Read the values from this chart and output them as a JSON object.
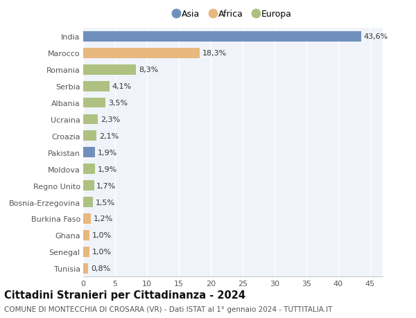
{
  "countries": [
    "India",
    "Marocco",
    "Romania",
    "Serbia",
    "Albania",
    "Ucraina",
    "Croazia",
    "Pakistan",
    "Moldova",
    "Regno Unito",
    "Bosnia-Erzegovina",
    "Burkina Faso",
    "Ghana",
    "Senegal",
    "Tunisia"
  ],
  "values": [
    43.6,
    18.3,
    8.3,
    4.1,
    3.5,
    2.3,
    2.1,
    1.9,
    1.9,
    1.7,
    1.5,
    1.2,
    1.0,
    1.0,
    0.8
  ],
  "labels": [
    "43,6%",
    "18,3%",
    "8,3%",
    "4,1%",
    "3,5%",
    "2,3%",
    "2,1%",
    "1,9%",
    "1,9%",
    "1,7%",
    "1,5%",
    "1,2%",
    "1,0%",
    "1,0%",
    "0,8%"
  ],
  "continents": [
    "Asia",
    "Africa",
    "Europa",
    "Europa",
    "Europa",
    "Europa",
    "Europa",
    "Asia",
    "Europa",
    "Europa",
    "Europa",
    "Africa",
    "Africa",
    "Africa",
    "Africa"
  ],
  "colors": {
    "Asia": "#7090bc",
    "Africa": "#e8b87e",
    "Europa": "#aec180"
  },
  "title": "Cittadini Stranieri per Cittadinanza - 2024",
  "subtitle": "COMUNE DI MONTECCHIA DI CROSARA (VR) - Dati ISTAT al 1° gennaio 2024 - TUTTITALIA.IT",
  "xlim": [
    0,
    47
  ],
  "xticks": [
    0,
    5,
    10,
    15,
    20,
    25,
    30,
    35,
    40,
    45
  ],
  "background_color": "#ffffff",
  "plot_bg_color": "#f0f4fa",
  "grid_color": "#ffffff",
  "bar_height": 0.62,
  "label_fontsize": 8,
  "tick_fontsize": 8,
  "ytick_fontsize": 8,
  "title_fontsize": 10.5,
  "subtitle_fontsize": 7.5
}
